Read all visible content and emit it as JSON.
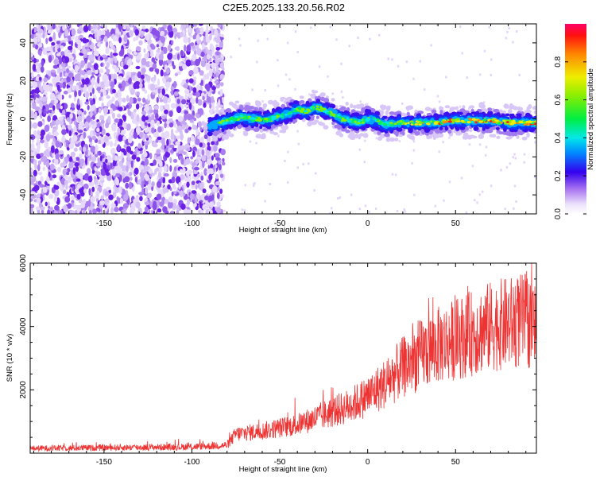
{
  "title": "C2E5.2025.133.20.56.R02",
  "chart_data": [
    {
      "type": "heatmap",
      "xlabel": "Height of straight line (km)",
      "ylabel": "Frequency (Hz)",
      "xlim": [
        -192,
        96
      ],
      "ylim": [
        -50,
        50
      ],
      "xticks": [
        -150,
        -100,
        -50,
        0,
        50
      ],
      "yticks": [
        -40,
        -20,
        0,
        20,
        40
      ],
      "noise_region_x": [
        -192,
        -82
      ],
      "ridge": {
        "x": [
          -90,
          -80,
          -72,
          -65,
          -58,
          -52,
          -45,
          -40,
          -35,
          -30,
          -25,
          -20,
          -15,
          -10,
          -5,
          0,
          5,
          10,
          20,
          30,
          40,
          50,
          60,
          70,
          80,
          90,
          96
        ],
        "y": [
          -4,
          -1,
          1,
          0,
          -1,
          1,
          3,
          5,
          4,
          6,
          5,
          3,
          0,
          -1,
          -2,
          0,
          -1,
          -3,
          -2,
          -2,
          -2,
          -1,
          -1,
          -1,
          -2,
          -2,
          -2
        ]
      },
      "colorbar": {
        "label": "Normalized spectral amplitude",
        "range": [
          0.0,
          1.0
        ],
        "ticks": [
          0.0,
          0.2,
          0.4,
          0.6,
          0.8
        ]
      }
    },
    {
      "type": "line",
      "xlabel": "Height of straight line (km)",
      "ylabel": "SNR (10 * v/v)",
      "xlim": [
        -192,
        96
      ],
      "ylim": [
        0,
        6000
      ],
      "xticks": [
        -150,
        -100,
        -50,
        0,
        50
      ],
      "yticks": [
        2000,
        4000,
        6000
      ],
      "color": "#ee3333",
      "trend": {
        "x": [
          -192,
          -100,
          -80,
          -75,
          -60,
          -50,
          -40,
          -30,
          -20,
          -10,
          0,
          10,
          20,
          30,
          40,
          50,
          60,
          70,
          80,
          90,
          96
        ],
        "y": [
          150,
          200,
          250,
          600,
          700,
          800,
          900,
          1100,
          1300,
          1500,
          1800,
          2200,
          2700,
          3100,
          3400,
          3600,
          3800,
          4000,
          4100,
          4200,
          4000
        ]
      }
    }
  ]
}
